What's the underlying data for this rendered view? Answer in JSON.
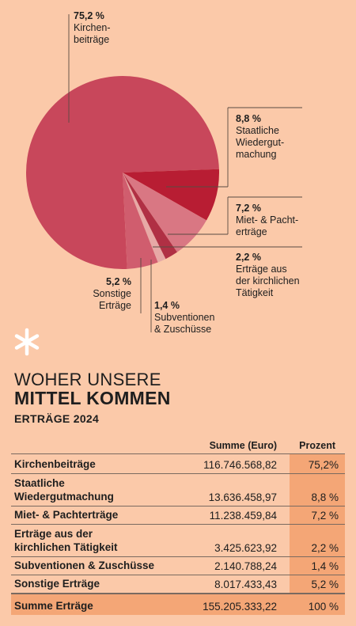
{
  "chart_data": {
    "type": "pie",
    "colors": {
      "main": "#c8475b",
      "slice2": "#b81d33",
      "slice3": "#d97783",
      "slice4": "#b03044",
      "slice5": "#e7a9a6",
      "slice6": "#d05d6e",
      "leader": "#5a4a42"
    },
    "slices": [
      {
        "label": "Kirchen-\nbeiträge",
        "pct_label": "75,2 %",
        "value": 75.2
      },
      {
        "label": "Staatliche\nWiedergut-\nmachung",
        "pct_label": "8,8 %",
        "value": 8.8
      },
      {
        "label": "Miet- & Pacht-\nerträge",
        "pct_label": "7,2 %",
        "value": 7.2
      },
      {
        "label": "Erträge aus\nder kirchlichen\nTätigkeit",
        "pct_label": "2,2 %",
        "value": 2.2
      },
      {
        "label": "Subventionen\n& Zuschüsse",
        "pct_label": "1,4 %",
        "value": 1.4
      },
      {
        "label": "Sonstige\nErträge",
        "pct_label": "5,2 %",
        "value": 5.2
      }
    ]
  },
  "heading": {
    "line1": "WOHER UNSERE",
    "line2": "MITTEL KOMMEN",
    "line3": "ERTRÄGE 2024"
  },
  "table": {
    "col_sum": "Summe (Euro)",
    "col_pct": "Prozent",
    "rows": [
      {
        "name": "Kirchenbeiträge",
        "sum": "116.746.568,82",
        "pct": "75,2%"
      },
      {
        "name": "Staatliche\nWiedergutmachung",
        "sum": "13.636.458,97",
        "pct": "8,8 %"
      },
      {
        "name": "Miet- & Pachterträge",
        "sum": "11.238.459,84",
        "pct": "7,2 %"
      },
      {
        "name": "Erträge aus der\nkirchlichen Tätigkeit",
        "sum": "3.425.623,92",
        "pct": "2,2 %"
      },
      {
        "name": "Subventionen & Zuschüsse",
        "sum": "2.140.788,24",
        "pct": "1,4 %"
      },
      {
        "name": "Sonstige Erträge",
        "sum": "8.017.433,43",
        "pct": "5,2 %"
      }
    ],
    "total": {
      "name": "Summe Erträge",
      "sum": "155.205.333,22",
      "pct": "100 %"
    }
  }
}
